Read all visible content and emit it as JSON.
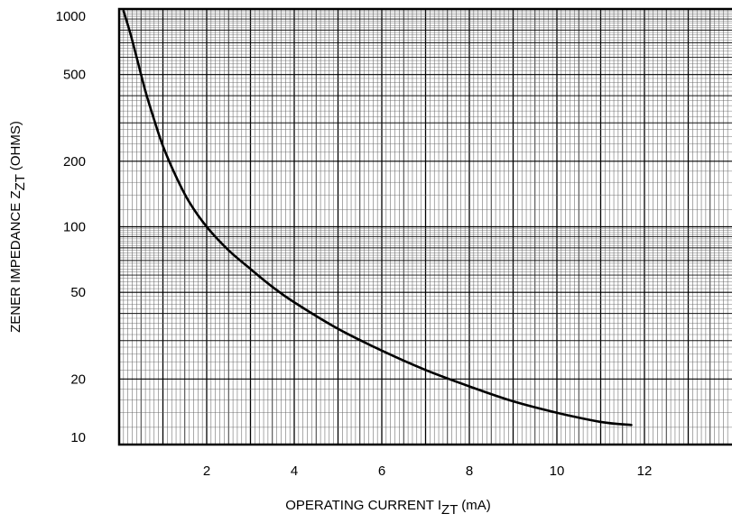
{
  "chart_data": {
    "type": "line",
    "x_scale": "linear",
    "y_scale": "log",
    "xlabel": {
      "main": "OPERATING CURRENT I",
      "sub": "ZT",
      "unit": "(mA)"
    },
    "ylabel": {
      "main": "ZENER IMPEDANCE Z",
      "sub": "ZT",
      "unit": "(OHMS)"
    },
    "xlim": [
      0,
      14
    ],
    "ylim": [
      10,
      1000
    ],
    "x_ticks": [
      2,
      4,
      6,
      8,
      10,
      12
    ],
    "x_tick_labels": [
      "2",
      "4",
      "6",
      "8",
      "10",
      "12"
    ],
    "y_ticks": [
      10,
      20,
      50,
      100,
      200,
      500,
      1000
    ],
    "y_tick_labels": [
      "10",
      "20",
      "50",
      "100",
      "200",
      "500",
      "1000"
    ],
    "grid": true,
    "series": [
      {
        "x": [
          0.1,
          0.25,
          0.4,
          0.6,
          0.8,
          1.0,
          1.3,
          1.6,
          2.0,
          2.5,
          3.0,
          3.5,
          4.0,
          5.0,
          6.0,
          7.0,
          8.0,
          9.0,
          10.0,
          11.0,
          11.7
        ],
        "y": [
          980,
          780,
          600,
          420,
          310,
          235,
          170,
          130,
          100,
          78,
          64,
          53,
          45,
          34,
          27,
          22,
          18.5,
          15.8,
          14,
          12.7,
          12.3
        ]
      }
    ]
  }
}
